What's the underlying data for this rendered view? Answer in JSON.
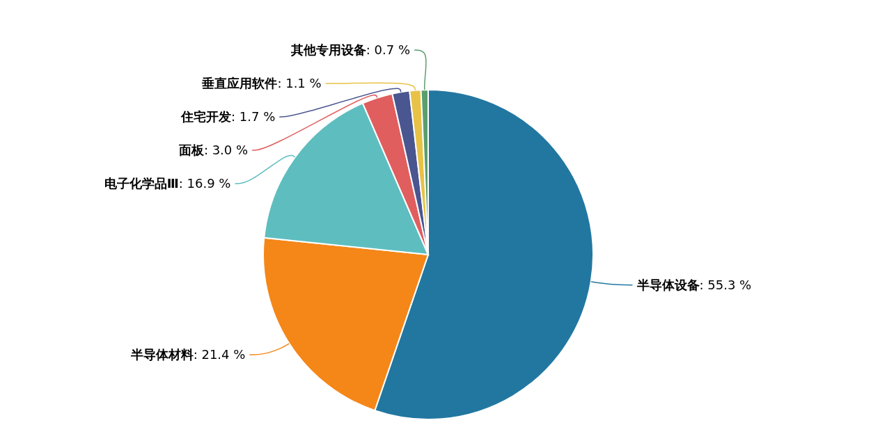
{
  "chart_data": {
    "type": "pie",
    "categories": [
      "半导体设备",
      "半导体材料",
      "电子化学品Ⅲ",
      "面板",
      "住宅开发",
      "垂直应用软件",
      "其他专用设备"
    ],
    "values": [
      55.3,
      21.4,
      16.9,
      3.0,
      1.7,
      1.1,
      0.7
    ],
    "value_labels": [
      ": 55.3 %",
      ": 21.4 %",
      ": 16.9 %",
      ": 3.0 %",
      ": 1.7 %",
      ": 1.1 %",
      ": 0.7 %"
    ],
    "colors": [
      "#2277a0",
      "#f58618",
      "#5ebdbf",
      "#e05e5e",
      "#4a5690",
      "#e8c246",
      "#5b9e6e"
    ]
  }
}
